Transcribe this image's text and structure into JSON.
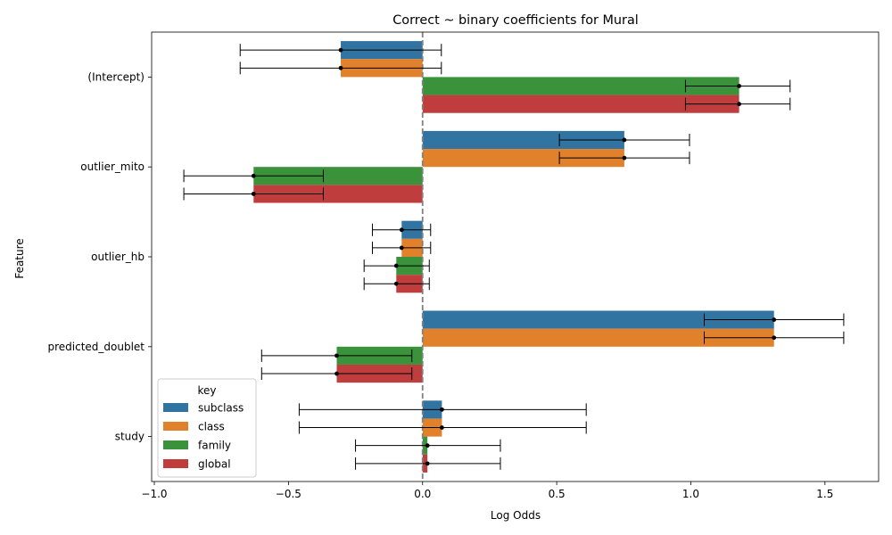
{
  "chart_data": {
    "type": "bar",
    "orientation": "horizontal",
    "title": "Correct ~ binary coefficients for Mural",
    "xlabel": "Log Odds",
    "ylabel": "Feature",
    "xlim": [
      -1.01,
      1.7
    ],
    "xticks": [
      -1.0,
      -0.5,
      0.0,
      0.5,
      1.0,
      1.5
    ],
    "xtick_labels": [
      "−1.0",
      "−0.5",
      "0.0",
      "0.5",
      "1.0",
      "1.5"
    ],
    "reference_line": 0,
    "categories": [
      "(Intercept)",
      "outlier_mito",
      "outlier_hb",
      "predicted_doublet",
      "study"
    ],
    "legend": {
      "title": "key",
      "placement": "lower-left"
    },
    "series": [
      {
        "name": "subclass",
        "color": "#3274a1",
        "values": [
          -0.305,
          0.752,
          -0.078,
          1.31,
          0.072
        ],
        "ci_low": [
          -0.68,
          0.51,
          -0.187,
          1.05,
          -0.46
        ],
        "ci_high": [
          0.07,
          0.995,
          0.03,
          1.57,
          0.61
        ]
      },
      {
        "name": "class",
        "color": "#e1812c",
        "values": [
          -0.305,
          0.752,
          -0.078,
          1.31,
          0.072
        ],
        "ci_low": [
          -0.68,
          0.51,
          -0.187,
          1.05,
          -0.46
        ],
        "ci_high": [
          0.07,
          0.995,
          0.03,
          1.57,
          0.61
        ]
      },
      {
        "name": "family",
        "color": "#3a923a",
        "values": [
          1.18,
          -0.63,
          -0.098,
          -0.32,
          0.018
        ],
        "ci_low": [
          0.98,
          -0.89,
          -0.218,
          -0.6,
          -0.25
        ],
        "ci_high": [
          1.37,
          -0.37,
          0.025,
          -0.04,
          0.29
        ]
      },
      {
        "name": "global",
        "color": "#c03d3e",
        "values": [
          1.18,
          -0.63,
          -0.098,
          -0.32,
          0.018
        ],
        "ci_low": [
          0.98,
          -0.89,
          -0.218,
          -0.6,
          -0.25
        ],
        "ci_high": [
          1.37,
          -0.37,
          0.025,
          -0.04,
          0.29
        ]
      }
    ]
  }
}
